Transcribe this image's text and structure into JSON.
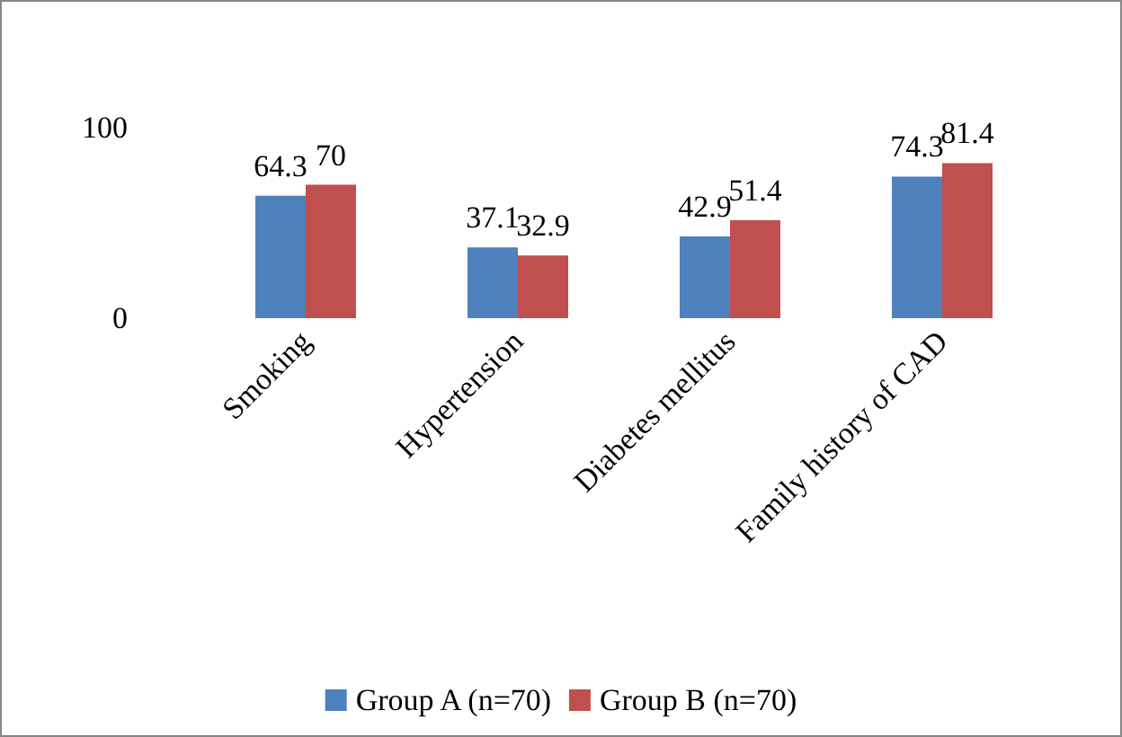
{
  "chart_data": {
    "type": "bar",
    "categories": [
      "Smoking",
      "Hypertension",
      "Diabetes mellitus",
      "Family history of CAD"
    ],
    "series": [
      {
        "name": "Group A (n=70)",
        "color": "#4f81bd",
        "values": [
          64.3,
          37.1,
          42.9,
          74.3
        ]
      },
      {
        "name": "Group B (n=70)",
        "color": "#c0504d",
        "values": [
          70,
          32.9,
          51.4,
          81.4
        ]
      }
    ],
    "ylim": [
      0,
      100
    ],
    "yticks": [
      0,
      100
    ],
    "grid": false,
    "legend": "bottom",
    "data_labels": true
  }
}
